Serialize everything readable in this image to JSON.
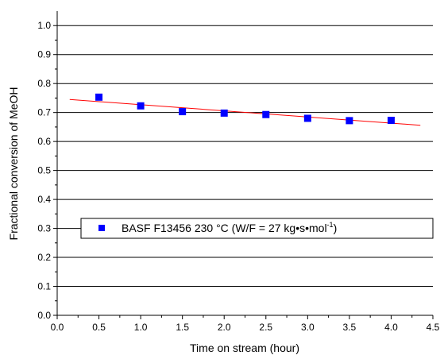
{
  "chart_data": {
    "type": "scatter",
    "xlabel": "Time on stream (hour)",
    "ylabel": "Fractional conversion of MeOH",
    "xlim": [
      0.0,
      4.5
    ],
    "ylim": [
      0.0,
      1.05
    ],
    "x_ticks": [
      "0.0",
      "0.5",
      "1.0",
      "1.5",
      "2.0",
      "2.5",
      "3.0",
      "3.5",
      "4.0",
      "4.5"
    ],
    "y_ticks": [
      "0.0",
      "0.1",
      "0.2",
      "0.3",
      "0.4",
      "0.5",
      "0.6",
      "0.7",
      "0.8",
      "0.9",
      "1.0"
    ],
    "grid": "horizontal",
    "series": [
      {
        "name": "BASF F13456 230 °C (W/F = 27 kg•s•mol-1)",
        "marker": "square",
        "color": "#0000ff",
        "x": [
          0.5,
          1.0,
          1.5,
          2.0,
          2.5,
          3.0,
          3.5,
          4.0
        ],
        "y": [
          0.753,
          0.723,
          0.703,
          0.698,
          0.693,
          0.68,
          0.672,
          0.673
        ]
      }
    ],
    "fit_line": {
      "color": "#ff0000",
      "x": [
        0.15,
        4.35
      ],
      "y": [
        0.745,
        0.656
      ]
    },
    "legend": {
      "position": "middle-left",
      "text_main": "BASF F13456 230 °C (W/F = 27 kg•s•mol",
      "text_sup": "-1",
      "text_close": ")"
    }
  }
}
